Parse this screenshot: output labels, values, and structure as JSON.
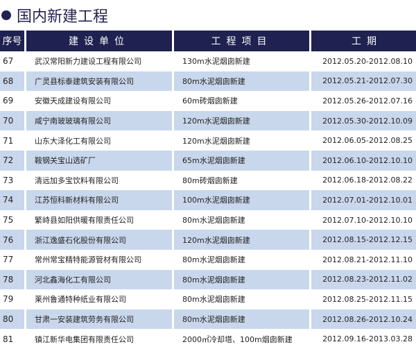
{
  "title": "国内新建工程",
  "columns": [
    "序号",
    "建设单位",
    "工程项目",
    "工期"
  ],
  "rows": [
    [
      "67",
      "武汉常阳新力建设工程有限公司",
      "130m水泥烟囱新建",
      "2012.05.20-2012.08.10"
    ],
    [
      "68",
      "广灵县标泰建筑安装有限公司",
      "80m水泥烟囱新建",
      "2012.05.21-2012.07.30"
    ],
    [
      "69",
      "安徽天成建设有限公司",
      "60m砖烟囱新建",
      "2012.05.26-2012.07.16"
    ],
    [
      "70",
      "咸宁南玻玻璃有限公司",
      "120m水泥烟囱新建",
      "2012.05.30-2012.10.09"
    ],
    [
      "71",
      "山东大泽化工有限公司",
      "120m水泥烟囱新建",
      "2012.06.05-2012.08.25"
    ],
    [
      "72",
      "鞍钢关宝山选矿厂",
      "65m水泥烟囱新建",
      "2012.06.10-2012.10.10"
    ],
    [
      "73",
      "清远加多宝饮料有限公司",
      "80m砖烟囱新建",
      "2012.06.18-2012.08.22"
    ],
    [
      "74",
      "江苏恒科新材料有限公司",
      "100m水泥烟囱新建",
      "2012.07.01-2012.10.01"
    ],
    [
      "75",
      "繁峙县如阳供暖有限责任公司",
      "80m水泥烟囱新建",
      "2012.07.10-2012.10.10"
    ],
    [
      "76",
      "浙江逸盛石化股份有限公司",
      "120m水泥烟囱新建",
      "2012.08.15-2012.12.15"
    ],
    [
      "77",
      "常州常宝精特能源管材有限公司",
      "80m水泥烟囱新建",
      "2012.08.21-2012.11.10"
    ],
    [
      "78",
      "河北鑫海化工有限公司",
      "80m水泥烟囱新建",
      "2012.08.23-2012.11.02"
    ],
    [
      "79",
      "莱州鲁通特种纸业有限公司",
      "80m水泥烟囱新建",
      "2012.08.25-2012.11.15"
    ],
    [
      "80",
      "甘肃一安装建筑劳务有限公司",
      "80m水泥烟囱新建",
      "2012.08.26-2012.10.24"
    ],
    [
      "81",
      "镇江新华电集团有限责任公司",
      "2000㎡冷却塔、100m烟囱新建",
      "2012.09.16-2013.03.28"
    ]
  ]
}
